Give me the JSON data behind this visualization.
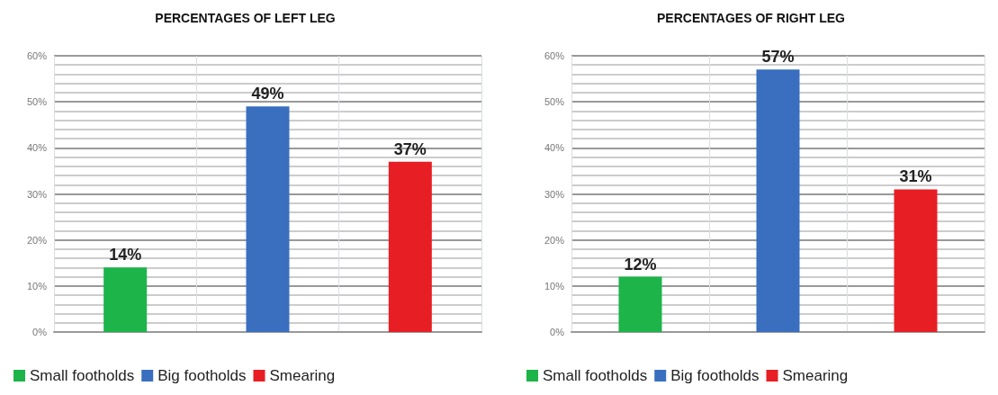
{
  "chart_data": [
    {
      "type": "bar",
      "title": "PERCENTAGES OF LEFT LEG",
      "categories": [
        null,
        null,
        null
      ],
      "series": [
        {
          "name": "Small footholds",
          "color": "#1db44a",
          "values": [
            14,
            null,
            null
          ],
          "value_labels": [
            "14%",
            null,
            null
          ]
        },
        {
          "name": "Big footholds",
          "color": "#3a6fbf",
          "values": [
            null,
            49,
            null
          ],
          "value_labels": [
            null,
            "49%",
            null
          ]
        },
        {
          "name": "Smearing",
          "color": "#e81e25",
          "values": [
            null,
            null,
            37
          ],
          "value_labels": [
            null,
            null,
            "37%"
          ]
        }
      ],
      "ylim": [
        0,
        60
      ],
      "yticks": [
        {
          "value": 0,
          "label": "0%"
        },
        {
          "value": 10,
          "label": "10%"
        },
        {
          "value": 20,
          "label": "20%"
        },
        {
          "value": 30,
          "label": "30%"
        },
        {
          "value": 40,
          "label": "40%"
        },
        {
          "value": 50,
          "label": "50%"
        },
        {
          "value": 60,
          "label": "60%"
        }
      ],
      "grid": true,
      "legend": "bottom left"
    },
    {
      "type": "bar",
      "title": "PERCENTAGES OF RIGHT LEG",
      "categories": [
        null,
        null,
        null
      ],
      "series": [
        {
          "name": "Small footholds",
          "color": "#1db44a",
          "values": [
            12,
            null,
            null
          ],
          "value_labels": [
            "12%",
            null,
            null
          ]
        },
        {
          "name": "Big footholds",
          "color": "#3a6fbf",
          "values": [
            null,
            57,
            null
          ],
          "value_labels": [
            null,
            "57%",
            null
          ]
        },
        {
          "name": "Smearing",
          "color": "#e81e25",
          "values": [
            null,
            null,
            31
          ],
          "value_labels": [
            null,
            null,
            "31%"
          ]
        }
      ],
      "ylim": [
        0,
        60
      ],
      "yticks": [
        {
          "value": 0,
          "label": "0%"
        },
        {
          "value": 10,
          "label": "10%"
        },
        {
          "value": 20,
          "label": "20%"
        },
        {
          "value": 30,
          "label": "30%"
        },
        {
          "value": 40,
          "label": "40%"
        },
        {
          "value": 50,
          "label": "50%"
        },
        {
          "value": 60,
          "label": "60%"
        }
      ],
      "grid": true,
      "legend": "bottom left"
    }
  ]
}
